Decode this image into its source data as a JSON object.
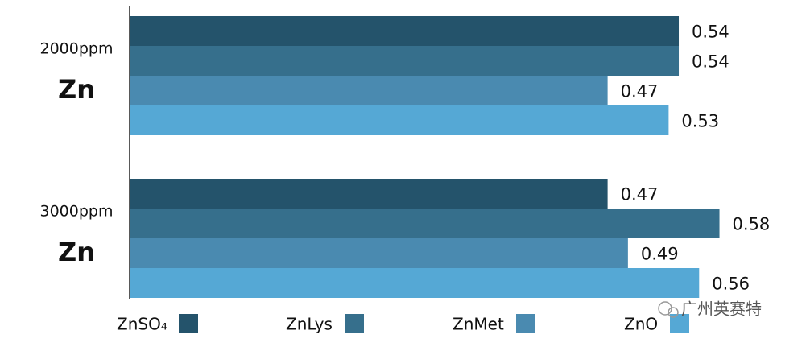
{
  "chart_data": {
    "type": "hbar",
    "categories": [
      [
        "2000ppm",
        "Zn"
      ],
      [
        "3000ppm",
        "Zn"
      ]
    ],
    "series": [
      {
        "name": "ZnSO₄",
        "color": "#24536b",
        "values": [
          0.54,
          0.47
        ]
      },
      {
        "name": "ZnLys",
        "color": "#366f8c",
        "values": [
          0.54,
          0.58
        ]
      },
      {
        "name": "ZnMet",
        "color": "#4a8ab0",
        "values": [
          0.47,
          0.49
        ]
      },
      {
        "name": "ZnO",
        "color": "#55a8d5",
        "values": [
          0.53,
          0.56
        ]
      }
    ],
    "legend": "bottom",
    "watermark": "广州英赛特"
  }
}
